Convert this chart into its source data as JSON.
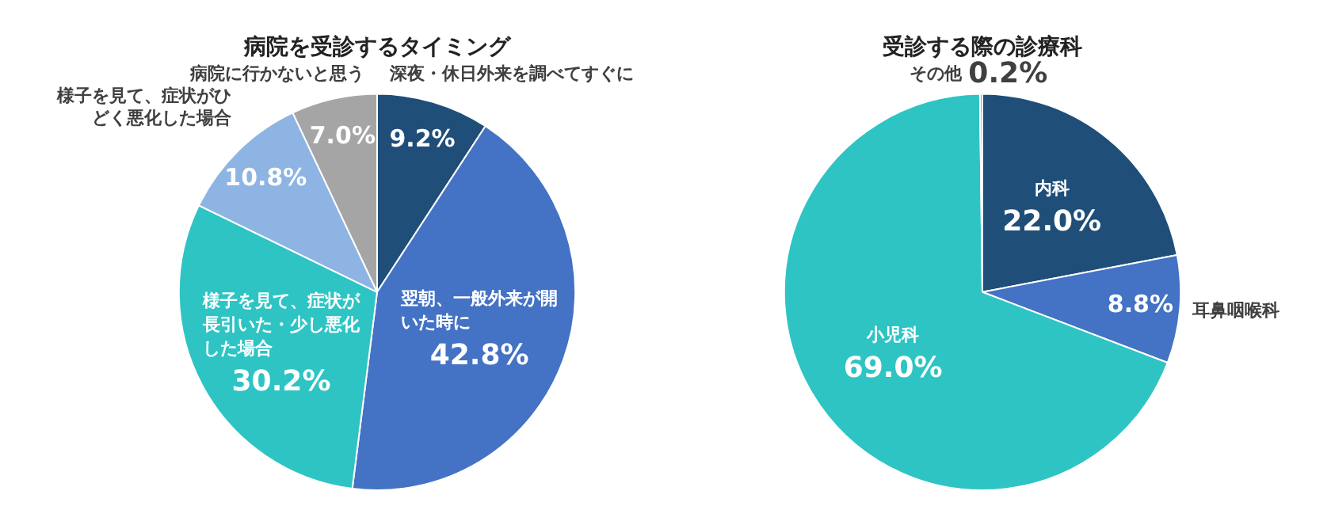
{
  "chart_data": [
    {
      "type": "pie",
      "title": "病院を受診するタイミング",
      "categories": [
        "深夜・休日外来を調べてすぐに",
        "翌朝、一般外来が開いた時に",
        "様子を見て、症状が長引いた・少し悪化した場合",
        "様子を見て、症状がひどく悪化した場合",
        "病院に行かないと思う"
      ],
      "values": [
        9.2,
        42.8,
        30.2,
        10.8,
        7.0
      ],
      "value_labels": [
        "9.2%",
        "42.8%",
        "30.2%",
        "10.8%",
        "7.0%"
      ],
      "colors": [
        "#1f4e79",
        "#4472c4",
        "#2ec4c4",
        "#8eb4e3",
        "#a5a5a5"
      ]
    },
    {
      "type": "pie",
      "title": "受診する際の診療科",
      "categories": [
        "内科",
        "耳鼻咽喉科",
        "小児科",
        "その他"
      ],
      "values": [
        22.0,
        8.8,
        69.0,
        0.2
      ],
      "value_labels": [
        "22.0%",
        "8.8%",
        "69.0%",
        "0.2%"
      ],
      "colors": [
        "#1f4e79",
        "#4472c4",
        "#2ec4c4",
        "#a5a5a5"
      ]
    }
  ]
}
